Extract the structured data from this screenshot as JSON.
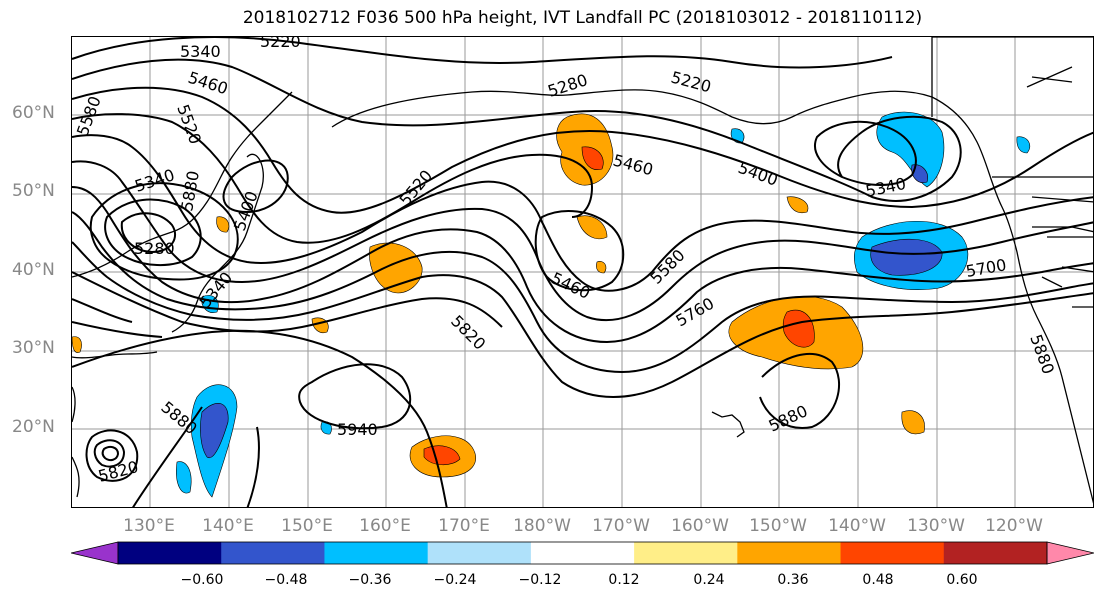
{
  "title": "2018102712 F036 500 hPa height, IVT Landfall PC (2018103012 - 2018110112)",
  "lat_labels": [
    "60°N",
    "50°N",
    "40°N",
    "30°N",
    "20°N"
  ],
  "lon_labels": [
    "130°E",
    "140°E",
    "150°E",
    "160°E",
    "170°E",
    "180°W",
    "170°W",
    "160°W",
    "150°W",
    "140°W",
    "130°W",
    "120°W"
  ],
  "contour_labels": [
    "5340",
    "5220",
    "5460",
    "5520",
    "5580",
    "5280",
    "5220",
    "5340",
    "5280",
    "5340",
    "5400",
    "5520",
    "5460",
    "5580",
    "5460",
    "5400",
    "5340",
    "5700",
    "5820",
    "5760",
    "5880",
    "5880",
    "5940",
    "5880",
    "5820",
    "5880"
  ],
  "colorbar": {
    "colors": [
      "#9933cc",
      "#000080",
      "#3355cc",
      "#00bfff",
      "#afe1fa",
      "#ffffff",
      "#ffee88",
      "#ffa500",
      "#ff4500",
      "#b22222",
      "#ff88aa"
    ],
    "ticks": [
      "−0.60",
      "−0.48",
      "−0.36",
      "−0.24",
      "−0.12",
      "0.12",
      "0.24",
      "0.36",
      "0.48",
      "0.60"
    ]
  }
}
